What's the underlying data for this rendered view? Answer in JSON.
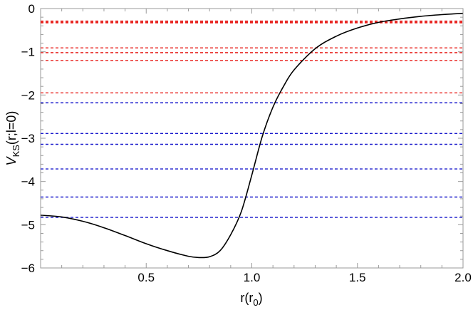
{
  "chart_data": {
    "type": "line",
    "xlabel": "r(r_0)",
    "ylabel": "V_KS(r;l=0)",
    "xlim": [
      0.0,
      2.0
    ],
    "ylim": [
      -6.0,
      0.0
    ],
    "x_ticks": [
      0.5,
      1.0,
      1.5,
      2.0
    ],
    "y_ticks": [
      0,
      -1,
      -2,
      -3,
      -4,
      -5,
      -6
    ],
    "x_tick_labels": [
      "0.5",
      "1.0",
      "1.5",
      "2.0"
    ],
    "y_tick_labels": [
      "0",
      "−1",
      "−2",
      "−3",
      "−4",
      "−5",
      "−6"
    ],
    "grid": false,
    "colors": {
      "curve": "#000000",
      "red_levels": "#e8231f",
      "blue_levels": "#1a1acc"
    },
    "series": [
      {
        "style": "solid",
        "color": "#000000",
        "x": [
          0.0,
          0.1,
          0.2,
          0.3,
          0.4,
          0.5,
          0.6,
          0.7,
          0.75,
          0.8,
          0.85,
          0.9,
          0.95,
          1.0,
          1.05,
          1.1,
          1.15,
          1.2,
          1.3,
          1.4,
          1.5,
          1.6,
          1.7,
          1.8,
          1.9,
          2.0
        ],
        "y": [
          -4.78,
          -4.82,
          -4.92,
          -5.07,
          -5.25,
          -5.44,
          -5.6,
          -5.73,
          -5.76,
          -5.74,
          -5.6,
          -5.23,
          -4.7,
          -3.85,
          -2.95,
          -2.28,
          -1.8,
          -1.42,
          -0.93,
          -0.64,
          -0.45,
          -0.32,
          -0.24,
          -0.18,
          -0.14,
          -0.11
        ]
      }
    ],
    "levels": [
      {
        "color": "#e8231f",
        "y": -0.29
      },
      {
        "color": "#e8231f",
        "y": -0.31
      },
      {
        "color": "#e8231f",
        "y": -0.33
      },
      {
        "color": "#e8231f",
        "y": -0.91
      },
      {
        "color": "#e8231f",
        "y": -1.02
      },
      {
        "color": "#e8231f",
        "y": -1.2
      },
      {
        "color": "#e8231f",
        "y": -1.95
      },
      {
        "color": "#1a1acc",
        "y": -2.18
      },
      {
        "color": "#1a1acc",
        "y": -2.89
      },
      {
        "color": "#1a1acc",
        "y": -3.14
      },
      {
        "color": "#1a1acc",
        "y": -3.71
      },
      {
        "color": "#1a1acc",
        "y": -4.36
      },
      {
        "color": "#1a1acc",
        "y": -4.83
      }
    ]
  }
}
